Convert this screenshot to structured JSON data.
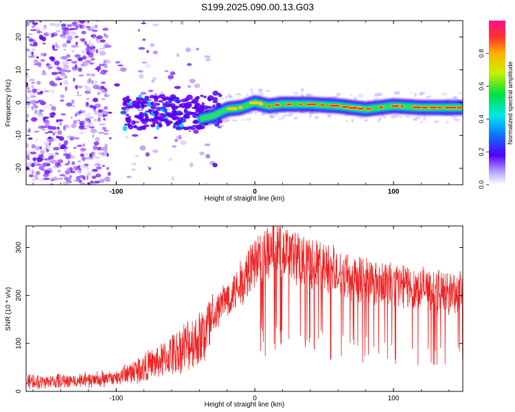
{
  "title": "S199.2025.090.00.13.G03",
  "chart_data": [
    {
      "type": "heatmap",
      "name": "spectrogram",
      "xlabel": "Height of straight line (km)",
      "ylabel": "Frequency (Hz)",
      "xlim": [
        -165,
        150
      ],
      "ylim": [
        -25,
        25
      ],
      "xticks": [
        -100,
        0,
        100
      ],
      "yticks": [
        -20,
        -10,
        0,
        10,
        20
      ],
      "colorbar": {
        "label": "Normalized spectral amplitude",
        "range": [
          0,
          1
        ],
        "ticks": [
          0.0,
          0.2,
          0.4,
          0.6,
          0.8
        ]
      },
      "ridge": {
        "x": [
          -40,
          -30,
          -20,
          -10,
          0,
          10,
          20,
          40,
          60,
          80,
          100,
          120,
          150
        ],
        "y": [
          -5,
          -4,
          -2,
          -1.5,
          0,
          -1,
          -0.5,
          -0.5,
          -1,
          -2,
          -1,
          -1.5,
          -1.5
        ]
      },
      "grid": false
    },
    {
      "type": "line",
      "name": "snr",
      "xlabel": "Height of straight line (km)",
      "ylabel": "SNR (10 * v/v)",
      "xlim": [
        -165,
        150
      ],
      "ylim": [
        0,
        345
      ],
      "xticks": [
        -100,
        0,
        100
      ],
      "yticks": [
        0,
        100,
        200,
        300
      ],
      "color": "#ee2222",
      "envelope": {
        "x": [
          -165,
          -130,
          -110,
          -100,
          -90,
          -80,
          -70,
          -60,
          -50,
          -40,
          -30,
          -25,
          -20,
          -15,
          -10,
          -5,
          0,
          5,
          10,
          15,
          20,
          25,
          30,
          40,
          50,
          60,
          70,
          80,
          90,
          100,
          110,
          120,
          130,
          140,
          150
        ],
        "y": [
          20,
          22,
          25,
          28,
          40,
          50,
          60,
          75,
          95,
          110,
          140,
          180,
          195,
          205,
          225,
          250,
          270,
          280,
          290,
          295,
          290,
          285,
          280,
          270,
          260,
          250,
          240,
          235,
          230,
          225,
          220,
          215,
          210,
          205,
          205
        ]
      },
      "grid": false
    }
  ]
}
